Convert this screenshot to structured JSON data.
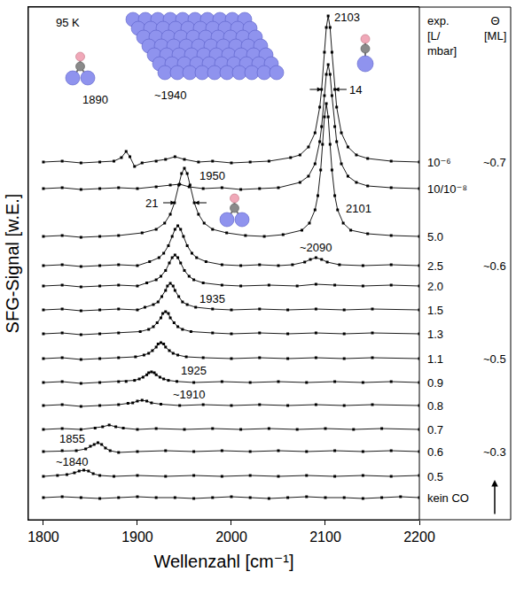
{
  "chart_data": {
    "type": "line",
    "x_label": "Wellenzahl [cm⁻¹]",
    "y_label": "SFG-Signal [w.E.]",
    "xlim": [
      1784,
      2200
    ],
    "ylim": [
      0,
      579
    ],
    "xticks": [
      1800,
      1900,
      2000,
      2100,
      2200
    ],
    "grid": false,
    "tick_labels": "x",
    "marker": "square",
    "line_style": "solid",
    "exposure_header": "exp. [L/mbar]",
    "coverage_header": "Θ [ML]",
    "series": [
      {
        "name": "10⁻⁶",
        "coverage": "~0.7",
        "color": "#000000",
        "x": [
          1800,
          1820,
          1840,
          1860,
          1875,
          1883,
          1888,
          1892,
          1897,
          1905,
          1920,
          1930,
          1940,
          1950,
          1965,
          1980,
          2000,
          2020,
          2040,
          2063,
          2073,
          2082,
          2089,
          2094,
          2096,
          2099,
          2101,
          2103,
          2105,
          2107,
          2110,
          2112,
          2117,
          2124,
          2133,
          2145,
          2170,
          2200
        ],
        "values": [
          404,
          405,
          403,
          404,
          405,
          409,
          416,
          410,
          399,
          403,
          405,
          407,
          410,
          407,
          404,
          405,
          403,
          404,
          405,
          409,
          412,
          421,
          437,
          466,
          486,
          528,
          556,
          569,
          556,
          528,
          486,
          466,
          437,
          421,
          412,
          408,
          405,
          404
        ]
      },
      {
        "name": "10/10⁻⁸",
        "color": "#000000",
        "x": [
          1800,
          1820,
          1840,
          1860,
          1880,
          1900,
          1920,
          1935,
          1945,
          1955,
          1970,
          1990,
          2010,
          2030,
          2050,
          2073,
          2082,
          2089,
          2094,
          2096,
          2099,
          2101,
          2103,
          2105,
          2107,
          2110,
          2112,
          2117,
          2124,
          2133,
          2145,
          2170,
          2200
        ],
        "values": [
          374,
          375,
          373,
          374,
          375,
          374,
          376,
          378,
          379,
          376,
          374,
          375,
          373,
          374,
          375,
          381,
          388,
          402,
          427,
          444,
          479,
          503,
          514,
          503,
          479,
          444,
          427,
          402,
          388,
          381,
          377,
          375,
          374
        ]
      },
      {
        "name": "5.0",
        "color": "#000000",
        "x": [
          1800,
          1820,
          1840,
          1860,
          1880,
          1905,
          1920,
          1929,
          1935,
          1939.5,
          1944,
          1947,
          1950,
          1953,
          1956,
          1960.5,
          1965,
          1971,
          1980,
          1995,
          2015,
          2035,
          2055,
          2075,
          2083,
          2089,
          2092,
          2095,
          2097,
          2099,
          2101,
          2103,
          2105,
          2107,
          2110,
          2113,
          2119,
          2127,
          2145,
          2170,
          2200
        ],
        "values": [
          320,
          321,
          319,
          320,
          321,
          324,
          328,
          335,
          345,
          358,
          378,
          391,
          397,
          391,
          378,
          358,
          345,
          335,
          328,
          324,
          321,
          320,
          322,
          327,
          335,
          350,
          366,
          395,
          424,
          455,
          470,
          455,
          424,
          395,
          366,
          350,
          335,
          327,
          323,
          321,
          320
        ]
      },
      {
        "name": "2.5",
        "coverage": "~0.6",
        "color": "#000000",
        "x": [
          1800,
          1820,
          1840,
          1860,
          1880,
          1900,
          1913,
          1923,
          1928,
          1933,
          1937,
          1940,
          1943,
          1946,
          1949,
          1953,
          1958,
          1963,
          1973,
          1990,
          2010,
          2030,
          2050,
          2065,
          2078,
          2084,
          2090,
          2096,
          2102,
          2115,
          2140,
          2170,
          2200
        ],
        "values": [
          287,
          288,
          286,
          287,
          288,
          287,
          291.5,
          296,
          301,
          309.5,
          320,
          328,
          332,
          328,
          320,
          309.5,
          301,
          296,
          291.5,
          288,
          287,
          288,
          287,
          288,
          291,
          294,
          296,
          294,
          291,
          288,
          287,
          288,
          287
        ]
      },
      {
        "name": "2.0",
        "color": "#000000",
        "x": [
          1800,
          1820,
          1840,
          1860,
          1880,
          1900,
          1910,
          1920,
          1925,
          1930,
          1934,
          1937,
          1940,
          1943,
          1946,
          1950,
          1955,
          1960,
          1970,
          1990,
          2010,
          2040,
          2070,
          2090,
          2110,
          2140,
          2170,
          2200
        ],
        "values": [
          264,
          265,
          263,
          264,
          265,
          264,
          267.5,
          271,
          275,
          281.5,
          290,
          296,
          299,
          296,
          290,
          281.5,
          275,
          271,
          267.5,
          265,
          264,
          265,
          264,
          266,
          265,
          264,
          265,
          264
        ]
      },
      {
        "name": "1.5",
        "color": "#000000",
        "x": [
          1800,
          1820,
          1840,
          1860,
          1880,
          1900,
          1908,
          1917,
          1922,
          1926,
          1930,
          1932,
          1935,
          1938,
          1940,
          1944,
          1948,
          1953,
          1962,
          1980,
          2000,
          2030,
          2060,
          2090,
          2120,
          2150,
          2200
        ],
        "values": [
          237,
          238,
          236,
          237,
          238,
          237,
          240,
          243,
          246,
          252,
          259,
          264,
          267,
          264,
          259,
          252,
          246,
          243,
          240,
          238,
          237,
          238,
          237,
          238,
          237,
          238,
          237
        ]
      },
      {
        "name": "1.3",
        "color": "#000000",
        "x": [
          1800,
          1820,
          1840,
          1860,
          1880,
          1903,
          1912,
          1917,
          1921,
          1925,
          1927,
          1930,
          1933,
          1935,
          1939,
          1943,
          1948,
          1957,
          1980,
          2000,
          2030,
          2060,
          2090,
          2120,
          2150,
          2200
        ],
        "values": [
          210,
          211,
          209,
          210,
          211,
          212.5,
          215,
          218,
          222.5,
          228,
          233,
          235,
          233,
          228,
          222.5,
          218,
          215,
          212.5,
          211,
          210,
          211,
          210,
          211,
          210,
          211,
          210
        ]
      },
      {
        "name": "1.1",
        "coverage": "~0.5",
        "color": "#000000",
        "x": [
          1800,
          1820,
          1840,
          1860,
          1880,
          1898,
          1907,
          1912,
          1916,
          1920,
          1922,
          1925,
          1928,
          1930,
          1934,
          1938,
          1943,
          1952,
          1970,
          2000,
          2030,
          2060,
          2090,
          2120,
          2150,
          2200
        ],
        "values": [
          182,
          183,
          181,
          182,
          183,
          184,
          186,
          188,
          191,
          195,
          198.5,
          200,
          198.5,
          195,
          191,
          188,
          186,
          184,
          183,
          182,
          183,
          182,
          183,
          182,
          183,
          182
        ]
      },
      {
        "name": "0.9",
        "color": "#000000",
        "x": [
          1800,
          1820,
          1840,
          1860,
          1880,
          1888,
          1897,
          1902,
          1906,
          1910,
          1912,
          1915,
          1918,
          1920,
          1924,
          1928,
          1933,
          1942,
          1960,
          1990,
          2020,
          2050,
          2080,
          2110,
          2140,
          2170,
          2200
        ],
        "values": [
          155,
          156,
          154,
          155,
          156,
          156.2,
          157.4,
          159,
          161,
          163.7,
          166,
          167,
          166,
          163.7,
          161,
          159,
          157.4,
          156.2,
          155,
          156,
          155,
          156,
          155,
          156,
          155,
          156,
          155
        ]
      },
      {
        "name": "0.8",
        "color": "#000000",
        "x": [
          1800,
          1820,
          1840,
          1860,
          1880,
          1890,
          1895,
          1900,
          1905,
          1910,
          1915,
          1925,
          1945,
          1970,
          2000,
          2030,
          2060,
          2090,
          2120,
          2150,
          2200
        ],
        "values": [
          129,
          130,
          128,
          129,
          130,
          131.5,
          132,
          134,
          135,
          134,
          132,
          130.5,
          129,
          130,
          129,
          130,
          129,
          130,
          129,
          130,
          129
        ]
      },
      {
        "name": "0.7",
        "color": "#000000",
        "x": [
          1800,
          1820,
          1840,
          1855,
          1863,
          1870,
          1877,
          1885,
          1900,
          1920,
          1950,
          1980,
          2010,
          2040,
          2070,
          2100,
          2130,
          2160,
          2200
        ],
        "values": [
          102,
          103,
          102,
          103.5,
          105,
          107,
          105,
          103.5,
          102,
          103,
          102,
          103,
          102,
          103,
          102,
          103,
          102,
          103,
          102
        ]
      },
      {
        "name": "0.6",
        "coverage": "~0.3",
        "color": "#000000",
        "x": [
          1800,
          1820,
          1835,
          1845,
          1850,
          1854,
          1858,
          1862,
          1866,
          1871,
          1880,
          1900,
          1930,
          1960,
          1990,
          2020,
          2050,
          2080,
          2110,
          2140,
          2170,
          2200
        ],
        "values": [
          77,
          78,
          78,
          80,
          83,
          85,
          87,
          85,
          81,
          78,
          76,
          77,
          78,
          77,
          78,
          77,
          78,
          77,
          78,
          77,
          78,
          77
        ]
      },
      {
        "name": "0.5",
        "color": "#000000",
        "x": [
          1800,
          1815,
          1825,
          1833,
          1838,
          1843,
          1848,
          1853,
          1860,
          1875,
          1900,
          1930,
          1960,
          1990,
          2020,
          2050,
          2080,
          2110,
          2140,
          2170,
          2200
        ],
        "values": [
          49,
          50,
          51,
          53,
          55,
          56,
          55,
          52,
          50,
          49,
          50,
          49,
          50,
          49,
          50,
          49,
          50,
          49,
          50,
          49,
          50
        ]
      },
      {
        "name": "kein CO",
        "color": "#000000",
        "x": [
          1800,
          1820,
          1840,
          1860,
          1880,
          1900,
          1920,
          1940,
          1960,
          1980,
          2000,
          2020,
          2040,
          2060,
          2080,
          2100,
          2120,
          2140,
          2160,
          2180,
          2200
        ],
        "values": [
          25,
          26,
          25,
          24,
          25,
          26,
          25,
          25,
          24,
          25,
          26,
          25,
          24,
          25,
          26,
          25,
          25,
          24,
          25,
          26,
          25
        ]
      }
    ],
    "annotations": [
      {
        "text": "95 K",
        "x": 1826,
        "y": 562
      },
      {
        "text": "2103",
        "x": 2123,
        "y": 568
      },
      {
        "text": "1890",
        "x": 1855,
        "y": 475
      },
      {
        "text": "~1940",
        "x": 1935,
        "y": 480
      },
      {
        "text": "1950",
        "x": 1980,
        "y": 389
      },
      {
        "text": "2101",
        "x": 2135,
        "y": 352
      },
      {
        "text": "~2090",
        "x": 2090,
        "y": 308
      },
      {
        "text": "1935",
        "x": 1980,
        "y": 250
      },
      {
        "text": "1925",
        "x": 1960,
        "y": 169
      },
      {
        "text": "~1910",
        "x": 1955,
        "y": 142
      },
      {
        "text": "1855",
        "x": 1831,
        "y": 92
      },
      {
        "text": "~1840",
        "x": 1831,
        "y": 66
      }
    ],
    "widths": [
      {
        "label": "14",
        "x0": 2096,
        "x1": 2110,
        "y": 486
      },
      {
        "label": "21",
        "x0": 1940,
        "x1": 1961,
        "y": 358
      }
    ]
  }
}
